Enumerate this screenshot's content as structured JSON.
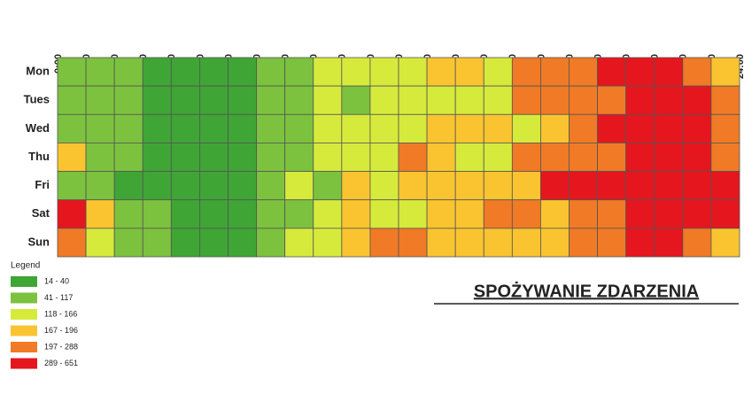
{
  "chart_data": {
    "type": "heatmap",
    "title": "SPOŻYWANIE ZDARZENIA",
    "x": [
      "0:00",
      "1:00",
      "2:00",
      "3:00",
      "4:00",
      "5:00",
      "6:00",
      "7:00",
      "8:00",
      "9:00",
      "10:00",
      "11:00",
      "12:00",
      "13:00",
      "14:00",
      "15:00",
      "16:00",
      "17:00",
      "18:00",
      "19:00",
      "20:00",
      "21:00",
      "22:00",
      "23:00",
      "24:00"
    ],
    "y": [
      "Mon",
      "Tues",
      "Wed",
      "Thu",
      "Fri",
      "Sat",
      "Sun"
    ],
    "values": [
      [
        79,
        79,
        79,
        27,
        27,
        27,
        27,
        79,
        79,
        142,
        142,
        142,
        142,
        181,
        181,
        142,
        242,
        242,
        242,
        470,
        470,
        470,
        242,
        181
      ],
      [
        79,
        79,
        79,
        27,
        27,
        27,
        27,
        79,
        79,
        142,
        79,
        142,
        142,
        142,
        142,
        142,
        242,
        242,
        242,
        242,
        470,
        470,
        470,
        242
      ],
      [
        79,
        79,
        79,
        27,
        27,
        27,
        27,
        79,
        79,
        142,
        142,
        142,
        142,
        181,
        181,
        181,
        142,
        181,
        242,
        470,
        470,
        470,
        470,
        242
      ],
      [
        181,
        79,
        79,
        27,
        27,
        27,
        27,
        79,
        79,
        142,
        142,
        142,
        242,
        181,
        142,
        142,
        242,
        242,
        242,
        242,
        470,
        470,
        470,
        242
      ],
      [
        79,
        79,
        27,
        27,
        27,
        27,
        27,
        79,
        142,
        79,
        181,
        142,
        181,
        181,
        181,
        181,
        181,
        470,
        470,
        470,
        470,
        470,
        470,
        470
      ],
      [
        470,
        181,
        79,
        79,
        27,
        27,
        27,
        79,
        79,
        142,
        181,
        142,
        142,
        181,
        181,
        242,
        242,
        181,
        242,
        242,
        470,
        470,
        470,
        470
      ],
      [
        242,
        142,
        79,
        79,
        27,
        27,
        27,
        79,
        142,
        142,
        181,
        242,
        242,
        181,
        181,
        181,
        181,
        181,
        242,
        242,
        470,
        470,
        242,
        181
      ]
    ],
    "legend_title": "Legend",
    "legend": [
      {
        "label": "14 - 40",
        "range": [
          14,
          40
        ],
        "color": "#3fa535"
      },
      {
        "label": "41 - 117",
        "range": [
          41,
          117
        ],
        "color": "#7cc23e"
      },
      {
        "label": "118 - 166",
        "range": [
          118,
          166
        ],
        "color": "#d6ea3c"
      },
      {
        "label": "167 - 196",
        "range": [
          167,
          196
        ],
        "color": "#f9c430"
      },
      {
        "label": "197 - 288",
        "range": [
          197,
          288
        ],
        "color": "#f07a26"
      },
      {
        "label": "289 - 651",
        "range": [
          289,
          651
        ],
        "color": "#e5161e"
      }
    ]
  }
}
